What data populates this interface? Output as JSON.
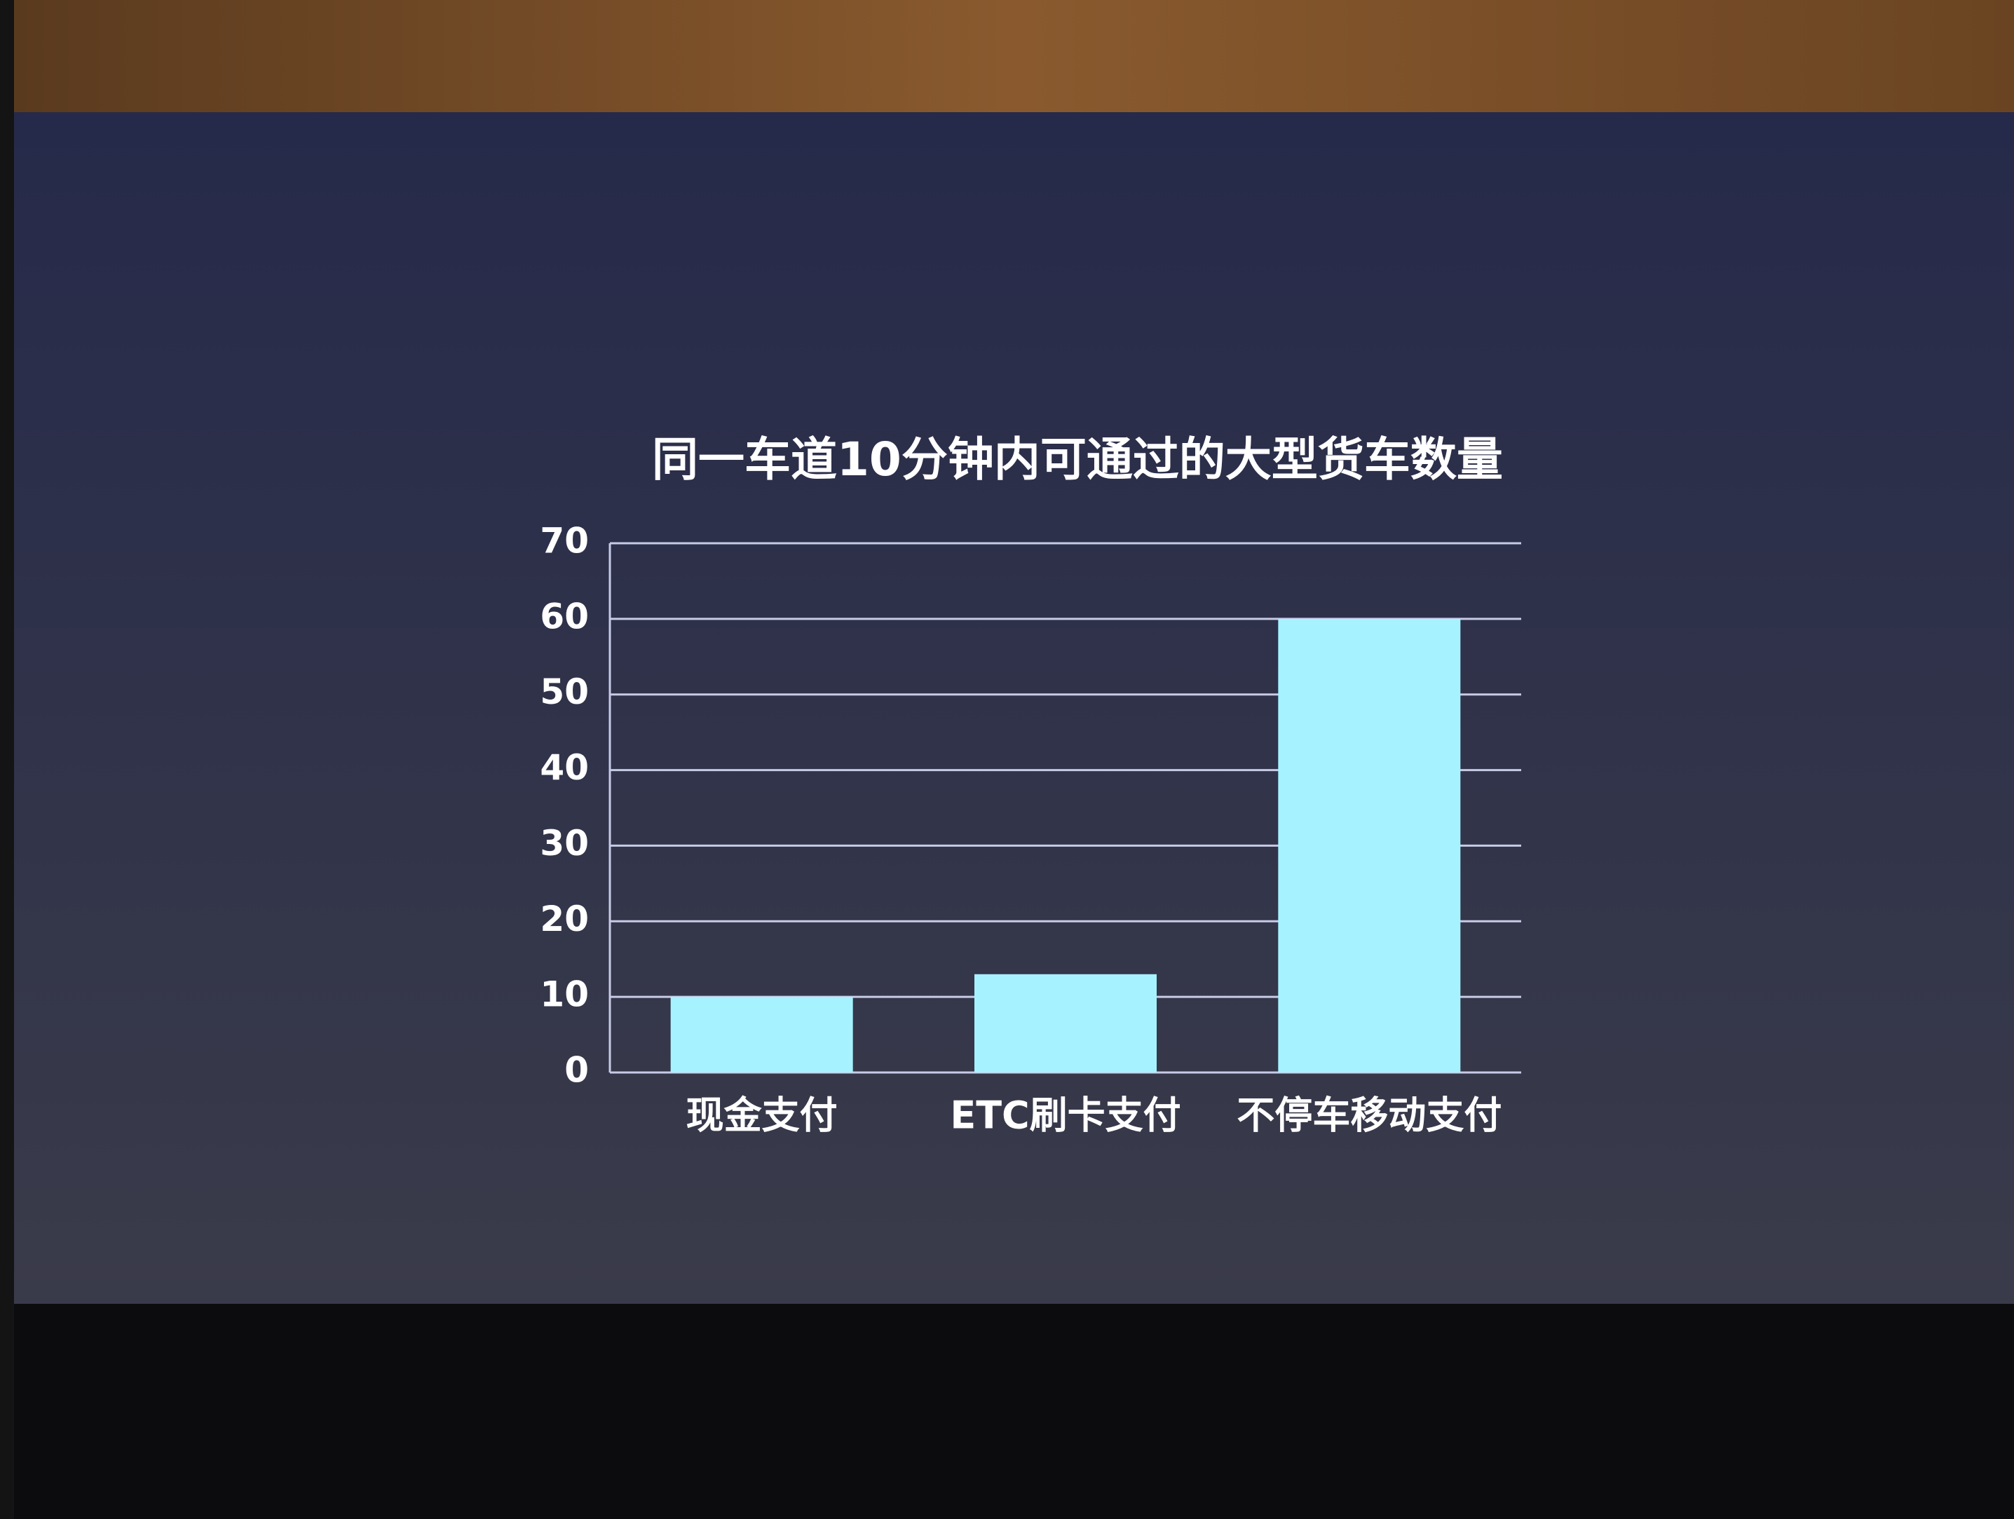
{
  "chart_data": {
    "type": "bar",
    "title": "同一车道10分钟内可通过的大型货车数量",
    "categories": [
      "现金支付",
      "ETC刷卡支付",
      "不停车移动支付"
    ],
    "values": [
      10,
      13,
      60
    ],
    "color": "#a6f3ff",
    "ylim": [
      0,
      70
    ],
    "yticks": [
      0,
      10,
      20,
      30,
      40,
      50,
      60,
      70
    ],
    "grid": true
  }
}
